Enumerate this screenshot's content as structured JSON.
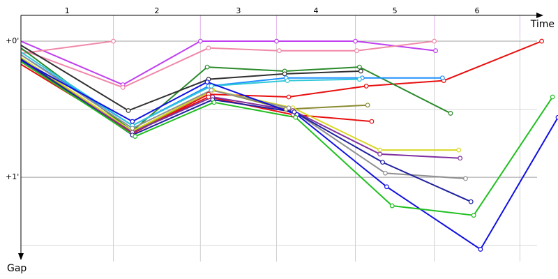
{
  "chart_data": {
    "type": "line",
    "x_label": "Time",
    "y_label": "Gap",
    "laps": [
      "1",
      "2",
      "3",
      "4",
      "5",
      "6"
    ],
    "lap_ends": [
      0.68,
      1.32,
      1.88,
      2.46,
      3.04,
      3.67
    ],
    "xlim": [
      0,
      3.95
    ],
    "ylim": [
      -0.19,
      1.62
    ],
    "yticks": [
      {
        "value": 0,
        "label": "+0'"
      },
      {
        "value": 1,
        "label": "+1'"
      }
    ],
    "ygrid": [
      0.5,
      1.5
    ],
    "series": [
      {
        "color": "#c040f0",
        "x": [
          0,
          0.75,
          1.32,
          1.88,
          2.46,
          3.05
        ],
        "values": [
          0,
          0.32,
          0,
          0,
          0,
          0.07
        ]
      },
      {
        "color": "#f088a8",
        "x": [
          0,
          0.75,
          1.38,
          1.9,
          2.47,
          3.04
        ],
        "values": [
          0.06,
          0.34,
          0.05,
          0.07,
          0.07,
          0
        ]
      },
      {
        "color": "#f088a8",
        "x": [
          0,
          0.68
        ],
        "values": [
          0.09,
          0
        ]
      },
      {
        "color": "#e81010",
        "x": [
          0,
          0.82,
          1.38,
          1.97,
          2.54,
          3.11,
          3.83
        ],
        "values": [
          0.15,
          0.68,
          0.39,
          0.41,
          0.33,
          0.29,
          0
        ]
      },
      {
        "color": "#e81010",
        "x": [
          0,
          0.82,
          1.38,
          2.0,
          2.58
        ],
        "values": [
          0.17,
          0.67,
          0.41,
          0.54,
          0.59
        ]
      },
      {
        "color": "#2a8a2a",
        "x": [
          0,
          0.82,
          1.37,
          1.94,
          2.49,
          3.16
        ],
        "values": [
          0.05,
          0.66,
          0.19,
          0.22,
          0.19,
          0.53
        ]
      },
      {
        "color": "#303030",
        "x": [
          0,
          0.79,
          1.38,
          1.94,
          2.5
        ],
        "values": [
          0.03,
          0.51,
          0.28,
          0.24,
          0.22
        ]
      },
      {
        "color": "#1e90ff",
        "x": [
          0,
          0.82,
          1.38,
          1.95,
          2.51,
          3.1
        ],
        "values": [
          0.1,
          0.62,
          0.33,
          0.27,
          0.27,
          0.27
        ]
      },
      {
        "color": "#30c8d8",
        "x": [
          0,
          0.82,
          1.4,
          1.96,
          2.49
        ],
        "values": [
          0.08,
          0.62,
          0.33,
          0.29,
          0.28
        ]
      },
      {
        "color": "#8a8a30",
        "x": [
          0,
          0.82,
          1.41,
          1.95,
          2.55
        ],
        "values": [
          0.13,
          0.67,
          0.36,
          0.5,
          0.47
        ]
      },
      {
        "color": "#d8d820",
        "x": [
          0,
          0.82,
          1.41,
          2.0,
          2.64,
          3.22
        ],
        "values": [
          0.12,
          0.66,
          0.36,
          0.49,
          0.8,
          0.8
        ]
      },
      {
        "color": "#8030a0",
        "x": [
          0,
          0.82,
          1.41,
          2.0,
          2.64,
          3.23
        ],
        "values": [
          0.14,
          0.67,
          0.41,
          0.51,
          0.83,
          0.86
        ]
      },
      {
        "color": "#909090",
        "x": [
          0,
          0.82,
          1.4,
          1.97,
          2.68,
          3.27
        ],
        "values": [
          0.1,
          0.64,
          0.36,
          0.49,
          0.97,
          1.01
        ]
      },
      {
        "color": "#2020a0",
        "x": [
          0,
          0.82,
          1.41,
          2.01,
          2.66,
          3.31
        ],
        "values": [
          0.13,
          0.69,
          0.43,
          0.52,
          0.89,
          1.18
        ]
      },
      {
        "color": "#1010e0",
        "x": [
          0,
          0.82,
          1.37,
          2.03,
          2.69,
          3.38,
          3.95
        ],
        "values": [
          0.14,
          0.59,
          0.3,
          0.54,
          1.07,
          1.53,
          0.56
        ]
      },
      {
        "color": "#20c020",
        "x": [
          0,
          0.84,
          1.42,
          2.02,
          2.73,
          3.33,
          3.91
        ],
        "values": [
          0.15,
          0.7,
          0.45,
          0.56,
          1.21,
          1.28,
          0.41
        ]
      }
    ]
  }
}
